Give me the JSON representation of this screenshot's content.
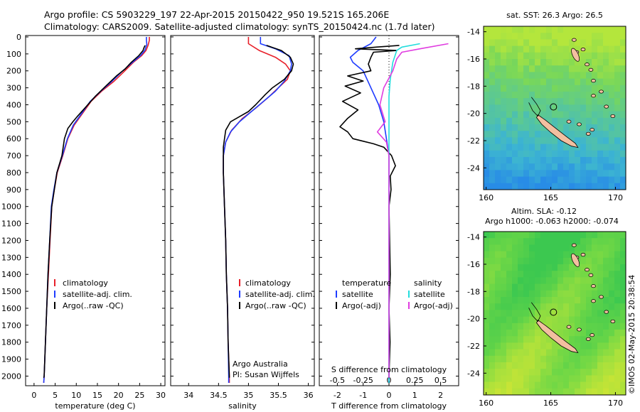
{
  "header": {
    "line1": "Argo profile: CS 5903229_197 22-Apr-2015 20150422_950 19.521S 165.206E",
    "line2": "Climatology: CARS2009. Satellite-adjusted climatology: synTS_20150424.nc (1.7d later)"
  },
  "colors": {
    "climatology": "#e8202a",
    "satellite": "#1f3cff",
    "argo": "#000000",
    "sat_salinity": "#22dddd",
    "argo_salinity": "#e03ce0",
    "land": "#f2bfa0"
  },
  "chart_data": [
    {
      "type": "line",
      "panel": "temperature",
      "xlabel": "temperature (deg C)",
      "ylabel": "",
      "xlim": [
        -2,
        31
      ],
      "ylim": [
        2050,
        0
      ],
      "xticks": [
        "0",
        "5",
        "10",
        "15",
        "20",
        "25",
        "30"
      ],
      "yticks": [
        "0",
        "100",
        "200",
        "300",
        "400",
        "500",
        "600",
        "700",
        "800",
        "900",
        "1000",
        "1100",
        "1200",
        "1300",
        "1400",
        "1500",
        "1600",
        "1700",
        "1800",
        "1900",
        "2000"
      ],
      "legend": [
        "climatology",
        "satellite-adj. clim.",
        "Argo(..raw -QC)"
      ],
      "series": [
        {
          "name": "climatology",
          "color": "#e8202a",
          "points": [
            [
              27.3,
              0
            ],
            [
              27.3,
              20
            ],
            [
              27,
              50
            ],
            [
              26.5,
              80
            ],
            [
              25.5,
              110
            ],
            [
              23.5,
              150
            ],
            [
              21.5,
              200
            ],
            [
              19,
              260
            ],
            [
              16,
              320
            ],
            [
              13.5,
              380
            ],
            [
              11.5,
              450
            ],
            [
              9.5,
              520
            ],
            [
              8,
              600
            ],
            [
              6.8,
              700
            ],
            [
              5.5,
              800
            ],
            [
              4.8,
              900
            ],
            [
              4.2,
              1000
            ],
            [
              3.8,
              1200
            ],
            [
              3.4,
              1400
            ],
            [
              3,
              1600
            ],
            [
              2.7,
              1800
            ],
            [
              2.4,
              2000
            ],
            [
              2.3,
              2040
            ]
          ]
        },
        {
          "name": "satellite-adj. clim.",
          "color": "#1f3cff",
          "points": [
            [
              26.6,
              0
            ],
            [
              26.6,
              20
            ],
            [
              26.7,
              45
            ],
            [
              26.2,
              80
            ],
            [
              25.2,
              110
            ],
            [
              23.3,
              150
            ],
            [
              21,
              200
            ],
            [
              18.5,
              260
            ],
            [
              15.8,
              320
            ],
            [
              13.3,
              380
            ],
            [
              11.3,
              450
            ],
            [
              9.3,
              520
            ],
            [
              7.9,
              600
            ],
            [
              6.7,
              700
            ],
            [
              5.4,
              800
            ],
            [
              4.7,
              900
            ],
            [
              4.1,
              1000
            ],
            [
              3.7,
              1200
            ],
            [
              3.3,
              1400
            ],
            [
              3,
              1600
            ],
            [
              2.7,
              1800
            ],
            [
              2.4,
              2000
            ],
            [
              2.3,
              2040
            ]
          ]
        },
        {
          "name": "Argo(..raw -QC)",
          "color": "#000000",
          "points": [
            [
              26.3,
              50
            ],
            [
              26,
              65
            ],
            [
              25.8,
              80
            ],
            [
              24.8,
              110
            ],
            [
              23,
              150
            ],
            [
              21.5,
              190
            ],
            [
              19.5,
              230
            ],
            [
              17,
              290
            ],
            [
              14.5,
              350
            ],
            [
              12,
              420
            ],
            [
              10.2,
              470
            ],
            [
              9.2,
              500
            ],
            [
              8,
              540
            ],
            [
              7.2,
              600
            ],
            [
              6.6,
              700
            ],
            [
              5.4,
              800
            ],
            [
              4.8,
              900
            ],
            [
              4.2,
              1000
            ],
            [
              3.7,
              1200
            ],
            [
              3.3,
              1400
            ],
            [
              3,
              1600
            ],
            [
              2.7,
              1800
            ],
            [
              2.4,
              2000
            ],
            [
              2.3,
              2010
            ]
          ]
        }
      ]
    },
    {
      "type": "line",
      "panel": "salinity",
      "xlabel": "salinity",
      "xlim": [
        33.7,
        36.1
      ],
      "ylim": [
        2050,
        0
      ],
      "xticks": [
        "34",
        "34.5",
        "35",
        "35.5",
        "36"
      ],
      "legend": [
        "climatology",
        "satellite-adj. clim.",
        "Argo(..raw -QC)"
      ],
      "series": [
        {
          "name": "climatology",
          "color": "#e8202a",
          "points": [
            [
              35,
              0
            ],
            [
              35,
              40
            ],
            [
              35.18,
              80
            ],
            [
              35.45,
              120
            ],
            [
              35.62,
              160
            ],
            [
              35.7,
              200
            ],
            [
              35.65,
              250
            ],
            [
              35.5,
              300
            ],
            [
              35.32,
              360
            ],
            [
              35.12,
              420
            ],
            [
              34.9,
              480
            ],
            [
              34.72,
              550
            ],
            [
              34.62,
              620
            ],
            [
              34.58,
              700
            ],
            [
              34.58,
              800
            ],
            [
              34.6,
              1000
            ],
            [
              34.62,
              1200
            ],
            [
              34.63,
              1400
            ],
            [
              34.65,
              1600
            ],
            [
              34.66,
              1800
            ],
            [
              34.68,
              2000
            ],
            [
              34.68,
              2040
            ]
          ]
        },
        {
          "name": "satellite-adj. clim.",
          "color": "#1f3cff",
          "points": [
            [
              35.2,
              0
            ],
            [
              35.2,
              40
            ],
            [
              35.45,
              70
            ],
            [
              35.68,
              110
            ],
            [
              35.72,
              160
            ],
            [
              35.7,
              200
            ],
            [
              35.6,
              260
            ],
            [
              35.45,
              320
            ],
            [
              35.25,
              380
            ],
            [
              35.05,
              440
            ],
            [
              34.85,
              500
            ],
            [
              34.7,
              560
            ],
            [
              34.62,
              620
            ],
            [
              34.58,
              700
            ],
            [
              34.58,
              800
            ],
            [
              34.6,
              1000
            ],
            [
              34.62,
              1200
            ],
            [
              34.63,
              1400
            ],
            [
              34.65,
              1600
            ],
            [
              34.66,
              1800
            ],
            [
              34.67,
              2000
            ],
            [
              34.67,
              2040
            ]
          ]
        },
        {
          "name": "Argo(..raw -QC)",
          "color": "#000000",
          "points": [
            [
              35.3,
              50
            ],
            [
              35.55,
              80
            ],
            [
              35.7,
              120
            ],
            [
              35.75,
              160
            ],
            [
              35.72,
              200
            ],
            [
              35.6,
              250
            ],
            [
              35.4,
              300
            ],
            [
              35.28,
              340
            ],
            [
              35.12,
              400
            ],
            [
              35,
              440
            ],
            [
              34.85,
              470
            ],
            [
              34.7,
              500
            ],
            [
              34.62,
              550
            ],
            [
              34.6,
              600
            ],
            [
              34.58,
              650
            ],
            [
              34.58,
              700
            ],
            [
              34.58,
              800
            ],
            [
              34.6,
              1000
            ],
            [
              34.62,
              1200
            ],
            [
              34.63,
              1400
            ],
            [
              34.65,
              1600
            ],
            [
              34.66,
              1800
            ],
            [
              34.68,
              2000
            ],
            [
              34.68,
              2010
            ]
          ]
        }
      ],
      "annotation": [
        "Argo Australia",
        "PI: Susan Wijffels"
      ]
    },
    {
      "type": "line",
      "panel": "difference",
      "xlabel": "T difference from climatology",
      "xlabel_top": "S difference from climatology",
      "xlim": [
        -2.7,
        2.7
      ],
      "ylim": [
        2050,
        0
      ],
      "xticks": [
        "-2",
        "-1",
        "0",
        "1",
        "2"
      ],
      "xticks_top": [
        "-0.5",
        "-0.25",
        "0",
        "0.25",
        "0.5"
      ],
      "legend_left": {
        "title": "temperature",
        "items": [
          "satellite",
          "Argo(-adj)"
        ]
      },
      "legend_right": {
        "title": "salinity",
        "items": [
          "satellite",
          "Argo(-adj)"
        ]
      },
      "series": [
        {
          "name": "temperature satellite",
          "color": "#1f3cff",
          "points": [
            [
              -0.5,
              0
            ],
            [
              -0.7,
              40
            ],
            [
              -1.2,
              80
            ],
            [
              -1.5,
              120
            ],
            [
              -1.4,
              150
            ],
            [
              -1.0,
              200
            ],
            [
              -0.7,
              300
            ],
            [
              -0.4,
              400
            ],
            [
              -0.2,
              500
            ],
            [
              -0.1,
              600
            ],
            [
              0,
              700
            ],
            [
              0,
              2040
            ]
          ]
        },
        {
          "name": "temperature Argo(-adj)",
          "color": "#000000",
          "points": [
            [
              0.4,
              50
            ],
            [
              -0.5,
              60
            ],
            [
              -1.3,
              70
            ],
            [
              0.3,
              80
            ],
            [
              -0.6,
              90
            ],
            [
              -0.7,
              120
            ],
            [
              -0.8,
              160
            ],
            [
              -0.7,
              200
            ],
            [
              -1.6,
              230
            ],
            [
              -1.0,
              260
            ],
            [
              -1.7,
              290
            ],
            [
              -1.1,
              330
            ],
            [
              -1.8,
              380
            ],
            [
              -1.2,
              430
            ],
            [
              -1.6,
              480
            ],
            [
              -1.9,
              530
            ],
            [
              -1.6,
              560
            ],
            [
              -1.4,
              600
            ],
            [
              -0.6,
              630
            ],
            [
              -0.2,
              650
            ],
            [
              0.1,
              700
            ],
            [
              0.25,
              760
            ],
            [
              0.05,
              820
            ],
            [
              0.08,
              900
            ],
            [
              0,
              1000
            ],
            [
              0.05,
              1400
            ],
            [
              0,
              1600
            ],
            [
              0.04,
              1800
            ],
            [
              0,
              2000
            ],
            [
              0,
              2010
            ]
          ]
        },
        {
          "name": "salinity satellite",
          "color": "#22dddd",
          "points": [
            [
              1.2,
              40
            ],
            [
              0.5,
              60
            ],
            [
              0.3,
              80
            ],
            [
              0.15,
              150
            ],
            [
              0.05,
              250
            ],
            [
              0,
              350
            ],
            [
              0,
              2040
            ]
          ]
        },
        {
          "name": "salinity Argo(-adj)",
          "color": "#e03ce0",
          "points": [
            [
              2.3,
              40
            ],
            [
              1.2,
              70
            ],
            [
              0.5,
              90
            ],
            [
              0.3,
              130
            ],
            [
              0.15,
              200
            ],
            [
              -0.2,
              300
            ],
            [
              -0.35,
              400
            ],
            [
              -0.15,
              500
            ],
            [
              -0.45,
              560
            ],
            [
              -0.1,
              620
            ],
            [
              0,
              700
            ],
            [
              0,
              2010
            ]
          ]
        }
      ]
    },
    {
      "type": "heatmap",
      "panel": "sst-map",
      "title": "sat. SST: 26.3 Argo: 26.5",
      "xlim": [
        159.8,
        170.8
      ],
      "ylim": [
        -25.6,
        -13.6
      ],
      "xticks": [
        "160",
        "165",
        "170"
      ],
      "yticks": [
        "-14",
        "-16",
        "-18",
        "-20",
        "-22",
        "-24"
      ],
      "argo_position": [
        165.206,
        -19.521
      ]
    },
    {
      "type": "heatmap",
      "panel": "sla-map",
      "title_line1": "Altim. SLA: -0.12",
      "title_line2": "Argo h1000: -0.063 h2000: -0.074",
      "xlim": [
        159.8,
        170.8
      ],
      "ylim": [
        -25.6,
        -13.6
      ],
      "xticks": [
        "160",
        "165",
        "170"
      ],
      "yticks": [
        "-14",
        "-16",
        "-18",
        "-20",
        "-22",
        "-24"
      ],
      "argo_position": [
        165.206,
        -19.521
      ]
    }
  ],
  "credit": "©IMOS 02-May-2015 20:38:54"
}
